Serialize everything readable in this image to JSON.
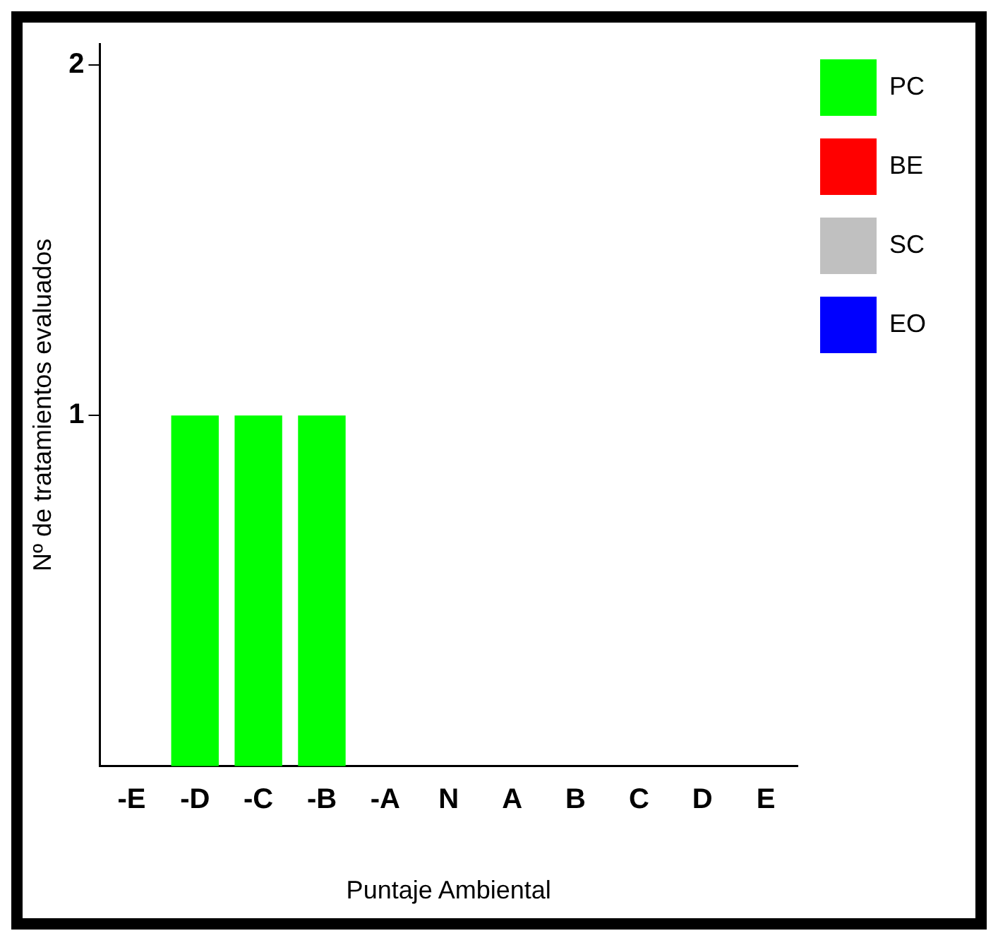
{
  "chart_data": {
    "type": "bar",
    "xlabel": "Puntaje Ambiental",
    "ylabel": "Nº de tratamientos evaluados",
    "categories": [
      "-E",
      "-D",
      "-C",
      "-B",
      "-A",
      "N",
      "A",
      "B",
      "C",
      "D",
      "E"
    ],
    "series": [
      {
        "name": "PC",
        "color": "#00ff00",
        "values": [
          0,
          1,
          1,
          1,
          0,
          0,
          0,
          0,
          0,
          0,
          0
        ]
      },
      {
        "name": "BE",
        "color": "#ff0000",
        "values": [
          0,
          0,
          0,
          0,
          0,
          0,
          0,
          0,
          0,
          0,
          0
        ]
      },
      {
        "name": "SC",
        "color": "#c0c0c0",
        "values": [
          0,
          0,
          0,
          0,
          0,
          0,
          0,
          0,
          0,
          0,
          0
        ]
      },
      {
        "name": "EO",
        "color": "#0000ff",
        "values": [
          0,
          0,
          0,
          0,
          0,
          0,
          0,
          0,
          0,
          0,
          0
        ]
      }
    ],
    "stacked": true,
    "ylim": [
      0,
      2.06
    ],
    "yticks": [
      1,
      2
    ],
    "legend": "top right"
  }
}
